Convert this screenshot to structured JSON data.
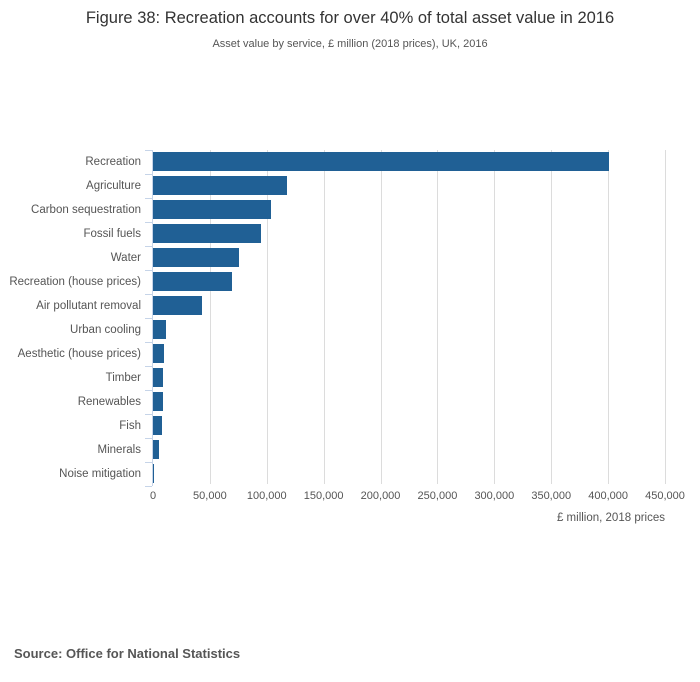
{
  "title": "Figure 38: Recreation accounts for over 40% of total asset value in 2016",
  "subtitle": "Asset value by service, £ million (2018 prices), UK, 2016",
  "source_note": "Source: Office for National Statistics",
  "colors": {
    "bar": "#206095",
    "gridline": "#dcdcdc",
    "axis_line": "#c6d4e8",
    "text_muted": "#555555",
    "title_text": "#333333"
  },
  "chart_data": {
    "type": "bar",
    "orientation": "horizontal",
    "title": "Figure 38: Recreation accounts for over 40% of total asset value in 2016",
    "subtitle": "Asset value by service, £ million (2018 prices), UK, 2016",
    "categories": [
      "Recreation",
      "Agriculture",
      "Carbon sequestration",
      "Fossil fuels",
      "Water",
      "Recreation (house prices)",
      "Air pollutant removal",
      "Urban cooling",
      "Aesthetic (house prices)",
      "Timber",
      "Renewables",
      "Fish",
      "Minerals",
      "Noise mitigation"
    ],
    "values": [
      401000,
      118000,
      104000,
      95000,
      76000,
      69000,
      43000,
      11400,
      9700,
      9200,
      8700,
      8200,
      5300,
      200
    ],
    "unit": "£ million, 2018 prices",
    "xlabel": "£ million, 2018 prices",
    "ylabel": "",
    "xlim": [
      0,
      450000
    ],
    "xticks": [
      0,
      50000,
      100000,
      150000,
      200000,
      250000,
      300000,
      350000,
      400000,
      450000
    ],
    "xtick_labels": [
      "0",
      "50,000",
      "100,000",
      "150,000",
      "200,000",
      "250,000",
      "300,000",
      "350,000",
      "400,000",
      "450,000"
    ],
    "grid": true,
    "legend": false
  }
}
